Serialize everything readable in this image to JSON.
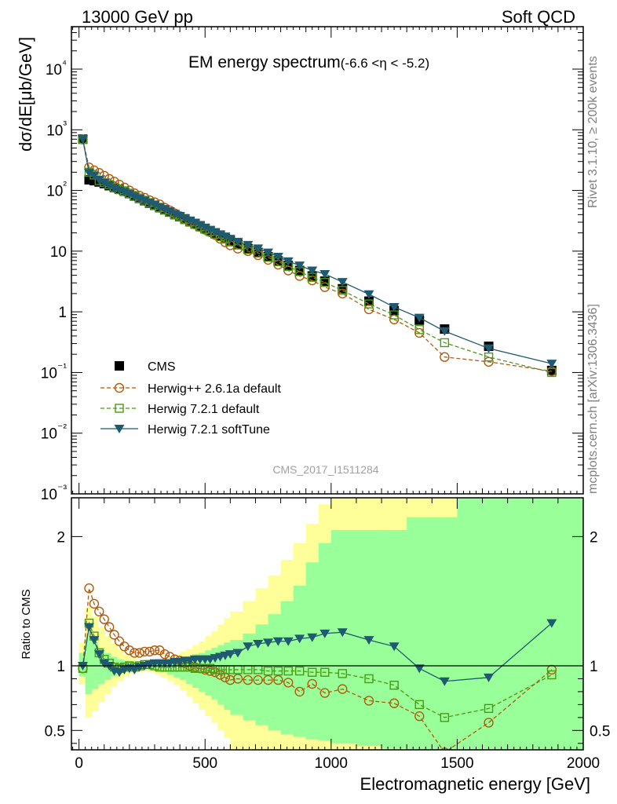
{
  "header": {
    "left": "13000 GeV pp",
    "right": "Soft QCD",
    "title_main": "EM energy spectrum",
    "title_range": "(-6.6 <η < -5.2)",
    "analysis_id": "CMS_2017_I1511284",
    "side_top": "Rivet 3.1.10, ≥ 200k events",
    "side_bottom": "mcplots.cern.ch [arXiv:1306.3436]"
  },
  "chart_data": [
    {
      "type": "scatter",
      "ylabel": "dσ/dE[μb/GeV]",
      "yscale": "log",
      "ylim": [
        0.001,
        50000
      ],
      "xlim": [
        -30,
        2000
      ],
      "ytick_labels": [
        "10⁻³",
        "10⁻²",
        "10⁻¹",
        "1",
        "10",
        "10²",
        "10³",
        "10⁴"
      ],
      "legend": [
        "CMS",
        "Herwig++ 2.6.1a default",
        "Herwig 7.2.1 default",
        "Herwig 7.2.1 softTune"
      ],
      "legend_position": "lower-left",
      "series": [
        {
          "name": "CMS",
          "color": "#000000",
          "marker": "square",
          "x": [
            15,
            40,
            60,
            80,
            100,
            120,
            140,
            160,
            180,
            200,
            220,
            240,
            260,
            280,
            300,
            320,
            340,
            360,
            380,
            400,
            420,
            440,
            460,
            480,
            500,
            520,
            540,
            560,
            580,
            600,
            630,
            670,
            710,
            750,
            790,
            830,
            875,
            925,
            975,
            1045,
            1150,
            1250,
            1350,
            1450,
            1625,
            1875
          ],
          "y": [
            700,
            150,
            145,
            138,
            130,
            120,
            112,
            105,
            97,
            89,
            81,
            74,
            68,
            62,
            57,
            52,
            48,
            44,
            40,
            37,
            34,
            31,
            28.5,
            26,
            23.5,
            21.5,
            19.5,
            17.8,
            16.2,
            14.7,
            13,
            11,
            9.5,
            8.1,
            6.9,
            5.8,
            4.8,
            3.9,
            3.2,
            2.4,
            1.5,
            1.05,
            0.73,
            0.52,
            0.27,
            0.108
          ]
        },
        {
          "name": "Herwig++ 2.6.1a default",
          "color": "#b35b0c",
          "marker": "open-circle",
          "dash": true,
          "x": [
            15,
            40,
            60,
            80,
            100,
            120,
            140,
            160,
            180,
            200,
            220,
            240,
            260,
            280,
            300,
            320,
            340,
            360,
            380,
            400,
            420,
            440,
            460,
            480,
            500,
            520,
            540,
            560,
            580,
            600,
            630,
            670,
            710,
            750,
            790,
            830,
            875,
            925,
            975,
            1045,
            1150,
            1250,
            1350,
            1450,
            1625,
            1875
          ],
          "y": [
            690,
            240,
            215,
            195,
            175,
            155,
            140,
            125,
            112,
            100,
            90,
            82,
            76,
            69,
            64,
            59,
            52,
            47,
            42,
            38,
            34,
            30.5,
            27.5,
            25,
            22.5,
            20.5,
            18.5,
            16,
            14,
            12.5,
            11,
            10,
            8.6,
            7.2,
            6,
            4.8,
            3.9,
            3.3,
            2.55,
            2.0,
            1.1,
            0.75,
            0.45,
            0.18,
            0.15,
            0.105
          ]
        },
        {
          "name": "Herwig 7.2.1 default",
          "color": "#4c9a14",
          "marker": "open-square",
          "dash": true,
          "x": [
            15,
            40,
            60,
            80,
            100,
            120,
            140,
            160,
            180,
            200,
            220,
            240,
            260,
            280,
            300,
            320,
            340,
            360,
            380,
            400,
            420,
            440,
            460,
            480,
            500,
            520,
            540,
            560,
            580,
            600,
            630,
            670,
            710,
            750,
            790,
            830,
            875,
            925,
            975,
            1045,
            1150,
            1250,
            1350,
            1450,
            1625,
            1875
          ],
          "y": [
            690,
            200,
            180,
            145,
            135,
            125,
            113,
            103,
            97,
            89,
            80,
            74,
            69,
            63,
            57,
            52,
            48,
            44,
            40,
            37,
            33,
            30,
            27.5,
            25,
            23,
            21,
            19,
            17.3,
            15.8,
            14.2,
            12.6,
            10.6,
            9.3,
            7.9,
            6.7,
            5.6,
            4.6,
            3.7,
            3.05,
            2.25,
            1.35,
            0.89,
            0.51,
            0.31,
            0.18,
            0.1
          ]
        },
        {
          "name": "Herwig 7.2.1 softTune",
          "color": "#1f5a70",
          "marker": "filled-triangle-down",
          "x": [
            15,
            40,
            60,
            80,
            100,
            120,
            140,
            160,
            180,
            200,
            220,
            240,
            260,
            280,
            300,
            320,
            340,
            360,
            380,
            400,
            420,
            440,
            460,
            480,
            500,
            520,
            540,
            560,
            580,
            600,
            630,
            670,
            710,
            750,
            790,
            830,
            875,
            925,
            975,
            1045,
            1150,
            1250,
            1350,
            1450,
            1625,
            1875
          ],
          "y": [
            700,
            195,
            175,
            150,
            133,
            120,
            108,
            100,
            94,
            87,
            79,
            73,
            68,
            63,
            58,
            53,
            49,
            45,
            41,
            38,
            35,
            32,
            29.5,
            27,
            24.5,
            22.5,
            20.7,
            19,
            17.5,
            16,
            14.3,
            12.7,
            11.1,
            9.5,
            8.1,
            6.8,
            5.8,
            4.8,
            4.2,
            3.1,
            1.95,
            1.2,
            0.8,
            0.48,
            0.25,
            0.14
          ]
        }
      ]
    },
    {
      "type": "line",
      "xlabel": "Electromagnetic energy [GeV]",
      "ylabel": "Ratio to CMS",
      "ylim": [
        0.35,
        2.3
      ],
      "xlim": [
        -30,
        2000
      ],
      "xtick_labels": [
        "0",
        "500",
        "1000",
        "1500",
        "2000"
      ],
      "ytick_labels": [
        "0.5",
        "1",
        "2"
      ],
      "band_colors": {
        "outer": "#ffff99",
        "inner": "#99ff99"
      },
      "bands": {
        "edges": [
          0,
          25,
          50,
          75,
          100,
          125,
          150,
          175,
          200,
          225,
          250,
          275,
          300,
          325,
          350,
          375,
          400,
          425,
          450,
          475,
          500,
          525,
          550,
          575,
          600,
          650,
          700,
          750,
          800,
          850,
          900,
          950,
          1000,
          1100,
          1200,
          1300,
          1400,
          1500,
          1750,
          2000
        ],
        "yellow_lo": [
          0.86,
          0.6,
          0.65,
          0.72,
          0.78,
          0.84,
          0.88,
          0.92,
          0.94,
          0.95,
          0.96,
          0.95,
          0.93,
          0.91,
          0.88,
          0.85,
          0.81,
          0.76,
          0.71,
          0.66,
          0.61,
          0.56,
          0.5,
          0.44,
          0.35,
          0.35,
          0.35,
          0.35,
          0.35,
          0.35,
          0.35,
          0.35,
          0.35,
          0.35,
          0.35,
          0.35,
          0.35,
          0.35,
          0.35
        ],
        "yellow_hi": [
          1.18,
          1.45,
          1.38,
          1.3,
          1.23,
          1.17,
          1.13,
          1.09,
          1.06,
          1.04,
          1.03,
          1.03,
          1.04,
          1.05,
          1.07,
          1.09,
          1.11,
          1.13,
          1.16,
          1.19,
          1.23,
          1.27,
          1.32,
          1.37,
          1.42,
          1.5,
          1.6,
          1.7,
          1.82,
          1.95,
          2.1,
          2.25,
          2.3,
          2.3,
          2.3,
          2.3,
          2.3,
          2.3,
          2.3
        ],
        "green_lo": [
          0.92,
          0.78,
          0.82,
          0.86,
          0.89,
          0.92,
          0.94,
          0.96,
          0.97,
          0.97,
          0.98,
          0.97,
          0.96,
          0.95,
          0.93,
          0.91,
          0.89,
          0.86,
          0.83,
          0.8,
          0.77,
          0.74,
          0.7,
          0.66,
          0.62,
          0.58,
          0.54,
          0.5,
          0.47,
          0.45,
          0.43,
          0.42,
          0.4,
          0.38,
          0.36,
          0.35,
          0.35,
          0.35,
          0.35
        ],
        "green_hi": [
          1.1,
          1.22,
          1.18,
          1.14,
          1.1,
          1.07,
          1.05,
          1.04,
          1.03,
          1.02,
          1.02,
          1.02,
          1.02,
          1.03,
          1.04,
          1.05,
          1.06,
          1.07,
          1.09,
          1.1,
          1.12,
          1.14,
          1.16,
          1.18,
          1.2,
          1.25,
          1.32,
          1.4,
          1.5,
          1.62,
          1.8,
          1.95,
          2.05,
          2.05,
          2.05,
          2.15,
          2.15,
          2.3,
          2.3
        ]
      },
      "series": [
        {
          "name": "Herwig++ 2.6.1a default",
          "color": "#b35b0c",
          "marker": "open-circle",
          "dash": true,
          "x": [
            15,
            40,
            60,
            80,
            100,
            120,
            140,
            160,
            180,
            200,
            220,
            240,
            260,
            280,
            300,
            320,
            340,
            360,
            380,
            400,
            420,
            440,
            460,
            480,
            500,
            520,
            540,
            560,
            580,
            600,
            630,
            670,
            710,
            750,
            790,
            830,
            875,
            925,
            975,
            1045,
            1150,
            1250,
            1350,
            1450,
            1625,
            1875
          ],
          "y": [
            0.98,
            1.6,
            1.48,
            1.42,
            1.36,
            1.3,
            1.24,
            1.19,
            1.15,
            1.12,
            1.1,
            1.1,
            1.11,
            1.11,
            1.12,
            1.12,
            1.09,
            1.07,
            1.05,
            1.04,
            1.02,
            1.0,
            0.99,
            0.98,
            0.97,
            0.96,
            0.95,
            0.93,
            0.91,
            0.89,
            0.9,
            0.89,
            0.89,
            0.89,
            0.89,
            0.87,
            0.8,
            0.86,
            0.79,
            0.82,
            0.73,
            0.71,
            0.61,
            0.33,
            0.56,
            0.97
          ]
        },
        {
          "name": "Herwig 7.2.1 default",
          "color": "#4c9a14",
          "marker": "open-square",
          "dash": true,
          "x": [
            15,
            40,
            60,
            80,
            100,
            120,
            140,
            160,
            180,
            200,
            220,
            240,
            260,
            280,
            300,
            320,
            340,
            360,
            380,
            400,
            420,
            440,
            460,
            480,
            500,
            520,
            540,
            560,
            580,
            600,
            630,
            670,
            710,
            750,
            790,
            830,
            875,
            925,
            975,
            1045,
            1150,
            1250,
            1350,
            1450,
            1625,
            1875
          ],
          "y": [
            0.98,
            1.33,
            1.23,
            1.1,
            1.05,
            1.02,
            0.99,
            0.98,
            0.99,
            1.0,
            0.99,
            1.0,
            1.01,
            1.01,
            1.0,
            0.99,
            0.99,
            0.99,
            0.99,
            0.99,
            0.99,
            0.99,
            0.98,
            0.98,
            0.98,
            0.98,
            0.97,
            0.97,
            0.97,
            0.97,
            0.97,
            0.97,
            0.97,
            0.96,
            0.96,
            0.96,
            0.96,
            0.95,
            0.95,
            0.94,
            0.9,
            0.85,
            0.7,
            0.6,
            0.67,
            0.93
          ]
        },
        {
          "name": "Herwig 7.2.1 softTune",
          "color": "#1f5a70",
          "marker": "filled-triangle-down",
          "x": [
            15,
            40,
            60,
            80,
            100,
            120,
            140,
            160,
            180,
            200,
            220,
            240,
            260,
            280,
            300,
            320,
            340,
            360,
            380,
            400,
            420,
            440,
            460,
            480,
            500,
            520,
            540,
            560,
            580,
            600,
            630,
            670,
            710,
            750,
            790,
            830,
            875,
            925,
            975,
            1045,
            1150,
            1250,
            1350,
            1450,
            1625,
            1875
          ],
          "y": [
            1.0,
            1.3,
            1.2,
            1.09,
            1.02,
            1.0,
            0.96,
            0.95,
            0.97,
            0.98,
            0.97,
            0.99,
            1.0,
            1.01,
            1.02,
            1.02,
            1.02,
            1.02,
            1.03,
            1.03,
            1.04,
            1.04,
            1.05,
            1.05,
            1.05,
            1.05,
            1.06,
            1.07,
            1.08,
            1.09,
            1.1,
            1.15,
            1.17,
            1.18,
            1.19,
            1.19,
            1.21,
            1.22,
            1.25,
            1.26,
            1.2,
            1.15,
            0.98,
            0.88,
            0.91,
            1.33
          ]
        }
      ]
    }
  ]
}
